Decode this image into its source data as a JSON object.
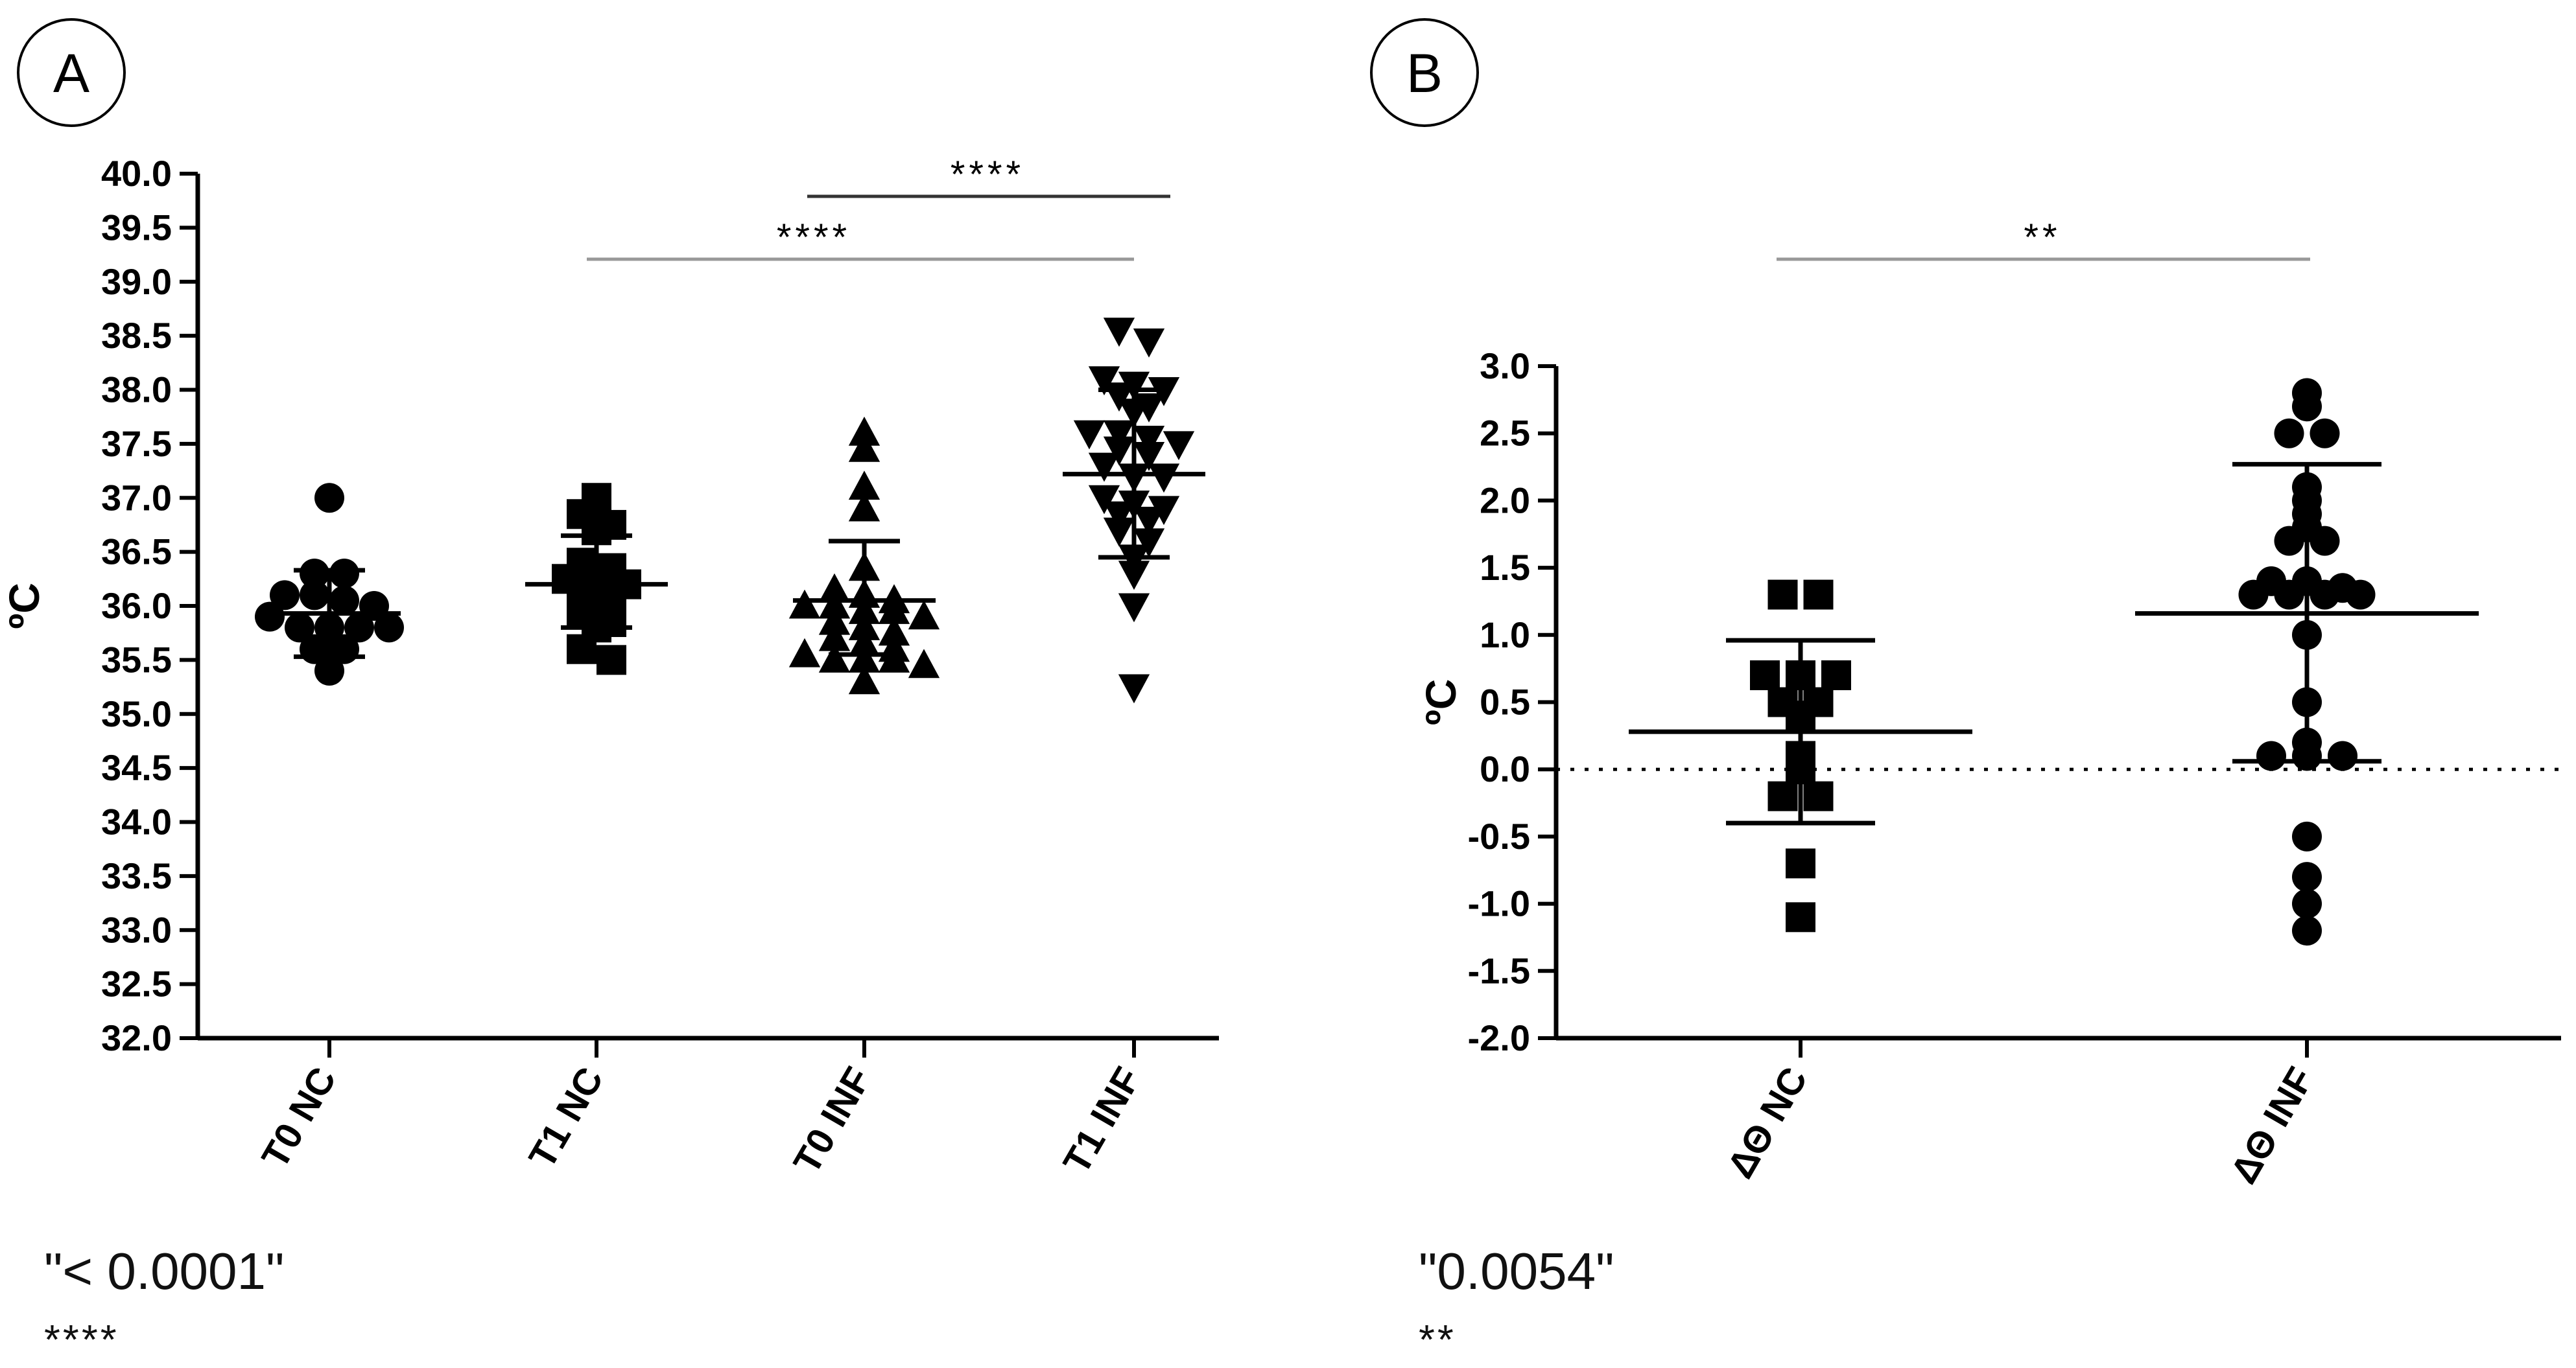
{
  "chart_data": [
    {
      "panel_label": "A",
      "type": "scatter",
      "ylabel": "ºC",
      "ylim": [
        32.0,
        40.0
      ],
      "y_ticks": [
        "32.0",
        "32.5",
        "33.0",
        "33.5",
        "34.0",
        "34.5",
        "35.0",
        "35.5",
        "36.0",
        "36.5",
        "37.0",
        "37.5",
        "38.0",
        "38.5",
        "39.0",
        "39.5",
        "40.0"
      ],
      "categories": [
        "T0 NC",
        "T1 NC",
        "T0 INF",
        "T1 INF"
      ],
      "groups": [
        {
          "category": "T0 NC",
          "marker": "circle",
          "mean": 35.93,
          "sd_low": 35.53,
          "sd_high": 36.33,
          "values": [
            37.0,
            36.3,
            36.3,
            36.1,
            36.1,
            36.05,
            36.0,
            35.9,
            35.8,
            35.8,
            35.8,
            35.8,
            35.6,
            35.6,
            35.4
          ]
        },
        {
          "category": "T1 NC",
          "marker": "square",
          "mean": 36.2,
          "sd_low": 35.8,
          "sd_high": 36.65,
          "values": [
            37.0,
            36.85,
            36.75,
            36.7,
            36.4,
            36.35,
            36.25,
            36.2,
            36.2,
            36.1,
            36.05,
            35.95,
            35.85,
            35.8,
            35.6,
            35.5
          ]
        },
        {
          "category": "T0 INF",
          "marker": "triangle-up",
          "mean": 36.05,
          "sd_low": 35.55,
          "sd_high": 36.6,
          "values": [
            37.6,
            37.45,
            37.1,
            36.9,
            36.35,
            36.15,
            36.1,
            36.05,
            36.0,
            36.0,
            35.95,
            35.95,
            35.9,
            35.85,
            35.8,
            35.75,
            35.7,
            35.65,
            35.6,
            35.55,
            35.5,
            35.5,
            35.5,
            35.45,
            35.3
          ]
        },
        {
          "category": "T1 INF",
          "marker": "triangle-down",
          "mean": 37.22,
          "sd_low": 36.45,
          "sd_high": 38.0,
          "values": [
            38.55,
            38.45,
            38.1,
            38.05,
            38.0,
            37.95,
            37.85,
            37.8,
            37.6,
            37.6,
            37.55,
            37.5,
            37.45,
            37.4,
            37.3,
            37.2,
            37.2,
            37.0,
            36.95,
            36.9,
            36.85,
            36.8,
            36.7,
            36.6,
            36.45,
            36.3,
            36.0,
            35.25
          ]
        }
      ],
      "significance": [
        {
          "from": "T1 NC",
          "to": "T1 INF",
          "label": "****"
        },
        {
          "from": "T0 INF",
          "to": "T1 INF",
          "label": "****"
        }
      ],
      "footnote_value": "\"< 0.0001\"",
      "footnote_stars": "****"
    },
    {
      "panel_label": "B",
      "type": "scatter",
      "ylabel": "ºC",
      "ylim": [
        -2.0,
        3.0
      ],
      "y_ticks": [
        "-2.0",
        "-1.5",
        "-1.0",
        "-0.5",
        "0.0",
        "0.5",
        "1.0",
        "1.5",
        "2.0",
        "2.5",
        "3.0"
      ],
      "reference_line": 0.0,
      "categories": [
        "ΔΘ NC",
        "ΔΘ INF"
      ],
      "groups": [
        {
          "category": "ΔΘ NC",
          "marker": "square",
          "mean": 0.28,
          "sd_low": -0.4,
          "sd_high": 0.96,
          "values": [
            1.3,
            1.3,
            0.7,
            0.7,
            0.7,
            0.5,
            0.5,
            0.4,
            0.1,
            0.0,
            -0.2,
            -0.2,
            -0.7,
            -1.1
          ]
        },
        {
          "category": "ΔΘ INF",
          "marker": "circle",
          "mean": 1.16,
          "sd_low": 0.06,
          "sd_high": 2.27,
          "values": [
            2.8,
            2.7,
            2.5,
            2.5,
            2.1,
            2.0,
            1.9,
            1.8,
            1.7,
            1.7,
            1.4,
            1.4,
            1.35,
            1.3,
            1.3,
            1.3,
            1.3,
            1.0,
            0.5,
            0.2,
            0.1,
            0.1,
            0.1,
            -0.5,
            -0.8,
            -1.0,
            -1.2
          ]
        }
      ],
      "significance": [
        {
          "from": "ΔΘ NC",
          "to": "ΔΘ INF",
          "label": "**"
        }
      ],
      "footnote_value": "\"0.0054\"",
      "footnote_stars": "**"
    }
  ]
}
